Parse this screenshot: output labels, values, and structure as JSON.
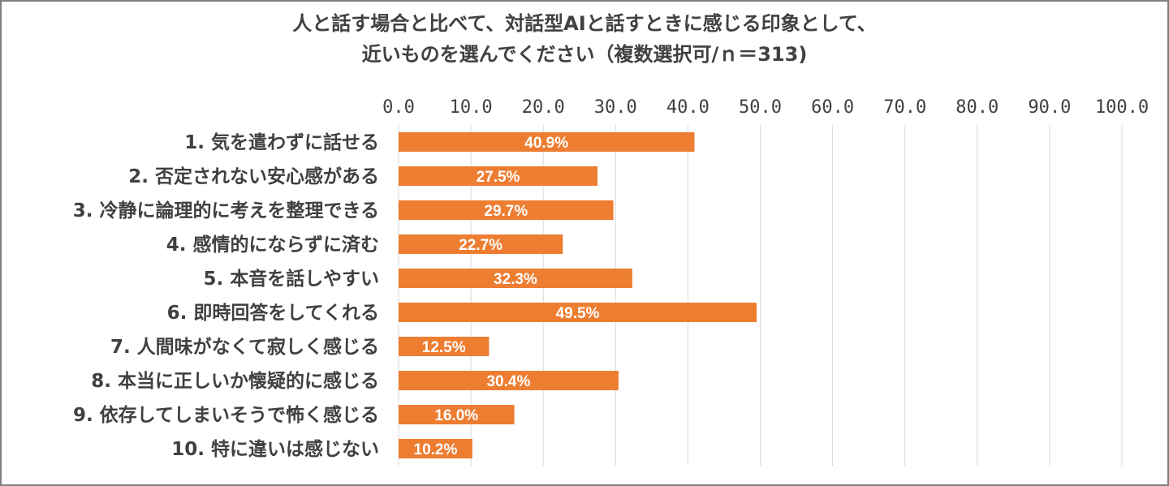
{
  "chart_data": {
    "type": "bar",
    "orientation": "horizontal",
    "title_lines": [
      "人と話す場合と比べて、対話型AIと話すときに感じる印象として、",
      "近いものを選んでください（複数選択可/ｎ＝313)"
    ],
    "xlim": [
      0,
      100
    ],
    "xticks": [
      "0.0",
      "10.0",
      "20.0",
      "30.0",
      "40.0",
      "50.0",
      "60.0",
      "70.0",
      "80.0",
      "90.0",
      "100.0"
    ],
    "grid": true,
    "categories": [
      "1. 気を遣わずに話せる",
      "2. 否定されない安心感がある",
      "3. 冷静に論理的に考えを整理できる",
      "4. 感情的にならずに済む",
      "5. 本音を話しやすい",
      "6. 即時回答をしてくれる",
      "7. 人間味がなくて寂しく感じる",
      "8. 本当に正しいか懐疑的に感じる",
      "9. 依存してしまいそうで怖く感じる",
      "10. 特に違いは感じない"
    ],
    "values": [
      40.9,
      27.5,
      29.7,
      22.7,
      32.3,
      49.5,
      12.5,
      30.4,
      16.0,
      10.2
    ],
    "data_labels": [
      "40.9%",
      "27.5%",
      "29.7%",
      "22.7%",
      "32.3%",
      "49.5%",
      "12.5%",
      "30.4%",
      "16.0%",
      "10.2%"
    ],
    "bar_color": "#ed7d31",
    "grid_color": "#d9d9d9",
    "text_color": "#404040"
  }
}
